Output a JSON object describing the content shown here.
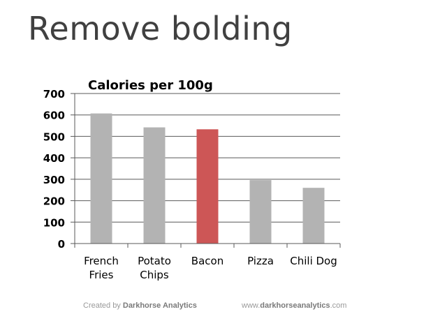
{
  "slide": {
    "title": "Remove bolding"
  },
  "footer": {
    "created_prefix": "Created by",
    "created_brand": "Darkhorse Analytics",
    "url_prefix": "www.",
    "url_domain": "darkhorseanalytics",
    "url_suffix": ".com"
  },
  "chart_data": {
    "type": "bar",
    "title": "Calories per 100g",
    "xlabel": "",
    "ylabel": "",
    "categories": [
      [
        "French",
        "Fries"
      ],
      [
        "Potato",
        "Chips"
      ],
      [
        "Bacon"
      ],
      [
        "Pizza"
      ],
      [
        "Chili Dog"
      ]
    ],
    "values": [
      607,
      542,
      533,
      296,
      260
    ],
    "ylim": [
      0,
      700
    ],
    "yticks": [
      0,
      100,
      200,
      300,
      400,
      500,
      600,
      700
    ],
    "grid": true,
    "legend": "none",
    "colors": {
      "default": "#b3b3b3",
      "highlight": "#cd5656"
    },
    "highlight_index": 2
  }
}
